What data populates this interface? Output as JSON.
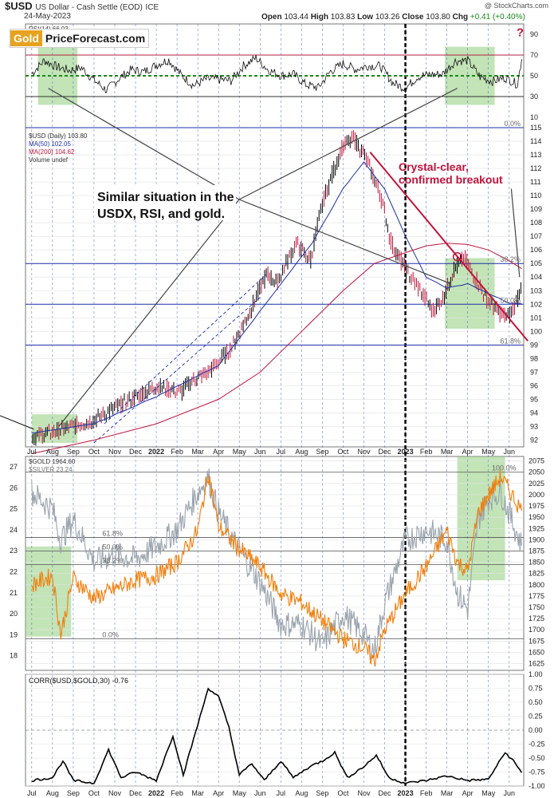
{
  "header": {
    "symbol": "$USD",
    "description": "US Dollar - Cash Settle (EOD)",
    "exchange": "ICE",
    "date": "24-May-2023",
    "open_label": "Open",
    "open": "103.44",
    "high_label": "High",
    "high": "103.83",
    "low_label": "Low",
    "low": "103.26",
    "close_label": "Close",
    "close": "103.80",
    "chg_label": "Chg",
    "chg": "+0.41 (+0.40%)",
    "copyright": "@ StockCharts.com"
  },
  "logo": {
    "part1": "Gold",
    "part2": "PriceForecast.com"
  },
  "colors": {
    "usd_bars": "#000000",
    "usd_down": "#c0143c",
    "ma50": "#1c2fa8",
    "ma200": "#c0143c",
    "gold": "#f07f0c",
    "silver": "#9aa3ad",
    "highlight": "#8fce7a",
    "corr": "#000000",
    "annotation": "#c0143c"
  },
  "annotations": {
    "question": "?",
    "similar": [
      "Similar situation in the",
      "USDX, RSI, and gold."
    ],
    "breakout": [
      "Crystal-clear,",
      "confirmed breakout"
    ]
  },
  "chart_data": [
    {
      "type": "line",
      "name": "rsi_panel",
      "legend": "RSI(14) 66.03",
      "y_ticks": [
        10,
        30,
        50,
        70,
        90
      ],
      "ylim": [
        0,
        100
      ],
      "levels": {
        "overbought": 70,
        "midline": 50,
        "oversold": 30
      },
      "last_value": 66.03
    },
    {
      "type": "line",
      "name": "usd_panel",
      "legend": [
        "$USD (Daily) 103.80",
        "MA(50) 102.05",
        "MA(200) 104.62",
        "Volume undef"
      ],
      "ylim": [
        91.5,
        115
      ],
      "y_ticks": [
        92,
        93,
        94,
        95,
        96,
        97,
        98,
        99,
        100,
        101,
        102,
        103,
        104,
        105,
        106,
        107,
        108,
        109,
        110,
        111,
        112,
        113,
        114,
        115
      ],
      "fib_levels": [
        {
          "label": "0.0%",
          "value": 115
        },
        {
          "label": "38.2%",
          "value": 105
        },
        {
          "label": "50.0%",
          "value": 102
        },
        {
          "label": "61.8%",
          "value": 99
        }
      ],
      "x_labels": [
        "Jul",
        "Aug",
        "Sep",
        "Oct",
        "Nov",
        "Dec",
        "2022",
        "Feb",
        "Mar",
        "Apr",
        "May",
        "Jun",
        "Jul",
        "Aug",
        "Sep",
        "Oct",
        "Nov",
        "Dec",
        "2023",
        "Feb",
        "Mar",
        "Apr",
        "May",
        "Jun"
      ],
      "keypoints": [
        [
          0,
          92.2
        ],
        [
          1.5,
          92.8
        ],
        [
          3,
          93.5
        ],
        [
          4.5,
          94.8
        ],
        [
          6,
          96.0
        ],
        [
          7.2,
          95.5
        ],
        [
          7.6,
          96.3
        ],
        [
          8.5,
          97.0
        ],
        [
          9.6,
          98.8
        ],
        [
          10.5,
          101.5
        ],
        [
          11.3,
          104.2
        ],
        [
          11.8,
          103.6
        ],
        [
          12.7,
          106.5
        ],
        [
          13.4,
          105.2
        ],
        [
          14,
          109.5
        ],
        [
          14.9,
          113.5
        ],
        [
          15.5,
          114.2
        ],
        [
          16,
          113.0
        ],
        [
          16.8,
          110.0
        ],
        [
          17.3,
          106.5
        ],
        [
          18,
          104.5
        ],
        [
          18.7,
          103.0
        ],
        [
          19.3,
          101.5
        ],
        [
          19.8,
          102.5
        ],
        [
          20.3,
          104.5
        ],
        [
          20.8,
          105.4
        ],
        [
          21.4,
          103.8
        ],
        [
          21.8,
          102.6
        ],
        [
          22.4,
          101.5
        ],
        [
          22.9,
          101.0
        ],
        [
          23.3,
          102.0
        ],
        [
          23.6,
          103.8
        ]
      ],
      "ma50": [
        [
          0,
          92.5
        ],
        [
          3,
          93.2
        ],
        [
          6,
          95.2
        ],
        [
          9,
          97.5
        ],
        [
          10.5,
          100.5
        ],
        [
          12,
          103.5
        ],
        [
          13.5,
          106.5
        ],
        [
          15,
          110.5
        ],
        [
          16,
          112.5
        ],
        [
          17,
          110.5
        ],
        [
          18,
          107.0
        ],
        [
          19,
          104.0
        ],
        [
          20,
          103.2
        ],
        [
          21,
          103.5
        ],
        [
          22,
          102.8
        ],
        [
          23,
          102.1
        ],
        [
          23.6,
          102.05
        ]
      ],
      "ma200": [
        [
          0,
          91.0
        ],
        [
          3,
          92.0
        ],
        [
          6,
          93.2
        ],
        [
          9,
          95.0
        ],
        [
          11,
          97.0
        ],
        [
          13,
          100.0
        ],
        [
          15,
          103.0
        ],
        [
          16.5,
          105.0
        ],
        [
          18,
          105.8
        ],
        [
          19,
          106.3
        ],
        [
          20,
          106.5
        ],
        [
          21,
          106.4
        ],
        [
          22,
          106.0
        ],
        [
          23,
          105.2
        ],
        [
          23.6,
          104.62
        ]
      ]
    },
    {
      "type": "line",
      "name": "gold_silver_panel",
      "legend": [
        "$GOLD 1964.60",
        "$SILVER 23.24"
      ],
      "y_ticks_gold": [
        1625,
        1650,
        1675,
        1700,
        1725,
        1750,
        1775,
        1800,
        1825,
        1850,
        1875,
        1900,
        1925,
        1950,
        1975,
        2000,
        2025,
        2050,
        2075
      ],
      "ylim_gold": [
        1610,
        2085
      ],
      "y_ticks_silver": [
        18,
        19,
        20,
        21,
        22,
        23,
        24,
        25,
        26,
        27
      ],
      "ylim_silver": [
        17.3,
        27.5
      ],
      "fib_levels": [
        "100.0%",
        "61.8%",
        "50.0%",
        "38.2%",
        "0.0%"
      ],
      "gold_keypoints": [
        [
          0,
          1800
        ],
        [
          1,
          1820
        ],
        [
          1.4,
          1690
        ],
        [
          2,
          1815
        ],
        [
          3,
          1770
        ],
        [
          4,
          1790
        ],
        [
          5,
          1810
        ],
        [
          6,
          1820
        ],
        [
          7,
          1850
        ],
        [
          8,
          1920
        ],
        [
          8.5,
          2050
        ],
        [
          9,
          1930
        ],
        [
          10,
          1880
        ],
        [
          11,
          1840
        ],
        [
          12,
          1780
        ],
        [
          13,
          1760
        ],
        [
          14,
          1720
        ],
        [
          15,
          1680
        ],
        [
          16,
          1660
        ],
        [
          16.5,
          1630
        ],
        [
          17,
          1700
        ],
        [
          18,
          1780
        ],
        [
          19,
          1840
        ],
        [
          20,
          1920
        ],
        [
          20.5,
          1850
        ],
        [
          21,
          1830
        ],
        [
          21.5,
          1960
        ],
        [
          22,
          2000
        ],
        [
          22.6,
          2040
        ],
        [
          23,
          2010
        ],
        [
          23.6,
          1964.6
        ]
      ],
      "silver_keypoints": [
        [
          0,
          25.8
        ],
        [
          1,
          25.0
        ],
        [
          1.4,
          23.5
        ],
        [
          2,
          24.5
        ],
        [
          3,
          22.5
        ],
        [
          4,
          22.8
        ],
        [
          5,
          22.6
        ],
        [
          6,
          23.2
        ],
        [
          7,
          24.0
        ],
        [
          8,
          25.8
        ],
        [
          8.5,
          26.5
        ],
        [
          9,
          24.8
        ],
        [
          10,
          23.0
        ],
        [
          11,
          21.5
        ],
        [
          12,
          19.5
        ],
        [
          13,
          19.5
        ],
        [
          14,
          18.5
        ],
        [
          15,
          20.0
        ],
        [
          16,
          19.0
        ],
        [
          16.5,
          18.2
        ],
        [
          17,
          20.5
        ],
        [
          18,
          23.5
        ],
        [
          19,
          24.0
        ],
        [
          20,
          23.5
        ],
        [
          20.5,
          21.0
        ],
        [
          21,
          20.2
        ],
        [
          21.5,
          24.5
        ],
        [
          22,
          25.5
        ],
        [
          22.6,
          25.8
        ],
        [
          23,
          24.8
        ],
        [
          23.6,
          23.24
        ]
      ]
    },
    {
      "type": "line",
      "name": "corr_panel",
      "legend": "CORR($USD,$GOLD,30) -0.76",
      "y_ticks": [
        "1.00",
        "0.75",
        "0.50",
        "0.25",
        "0.00",
        "-0.25",
        "-0.50",
        "-0.75",
        "-1.00"
      ],
      "ylim": [
        -1,
        1
      ],
      "keypoints": [
        [
          0,
          -0.9
        ],
        [
          1,
          -0.85
        ],
        [
          1.5,
          -0.55
        ],
        [
          2,
          -0.9
        ],
        [
          3,
          -0.95
        ],
        [
          3.7,
          -0.35
        ],
        [
          4.3,
          -0.85
        ],
        [
          5,
          -0.75
        ],
        [
          6,
          -0.9
        ],
        [
          6.8,
          -0.1
        ],
        [
          7.3,
          -0.8
        ],
        [
          8,
          0.1
        ],
        [
          8.5,
          0.75
        ],
        [
          9,
          0.6
        ],
        [
          9.5,
          0.05
        ],
        [
          10,
          -0.8
        ],
        [
          10.6,
          -0.6
        ],
        [
          11.2,
          -0.9
        ],
        [
          12,
          -0.55
        ],
        [
          12.6,
          -0.85
        ],
        [
          13.4,
          -0.65
        ],
        [
          14,
          -0.55
        ],
        [
          14.6,
          -0.4
        ],
        [
          15.2,
          -0.85
        ],
        [
          16,
          -0.65
        ],
        [
          16.6,
          -0.45
        ],
        [
          17.2,
          -0.85
        ],
        [
          18,
          -0.95
        ],
        [
          19,
          -0.9
        ],
        [
          20,
          -0.82
        ],
        [
          21,
          -0.9
        ],
        [
          22,
          -0.88
        ],
        [
          22.8,
          -0.4
        ],
        [
          23.2,
          -0.55
        ],
        [
          23.6,
          -0.76
        ]
      ]
    }
  ]
}
